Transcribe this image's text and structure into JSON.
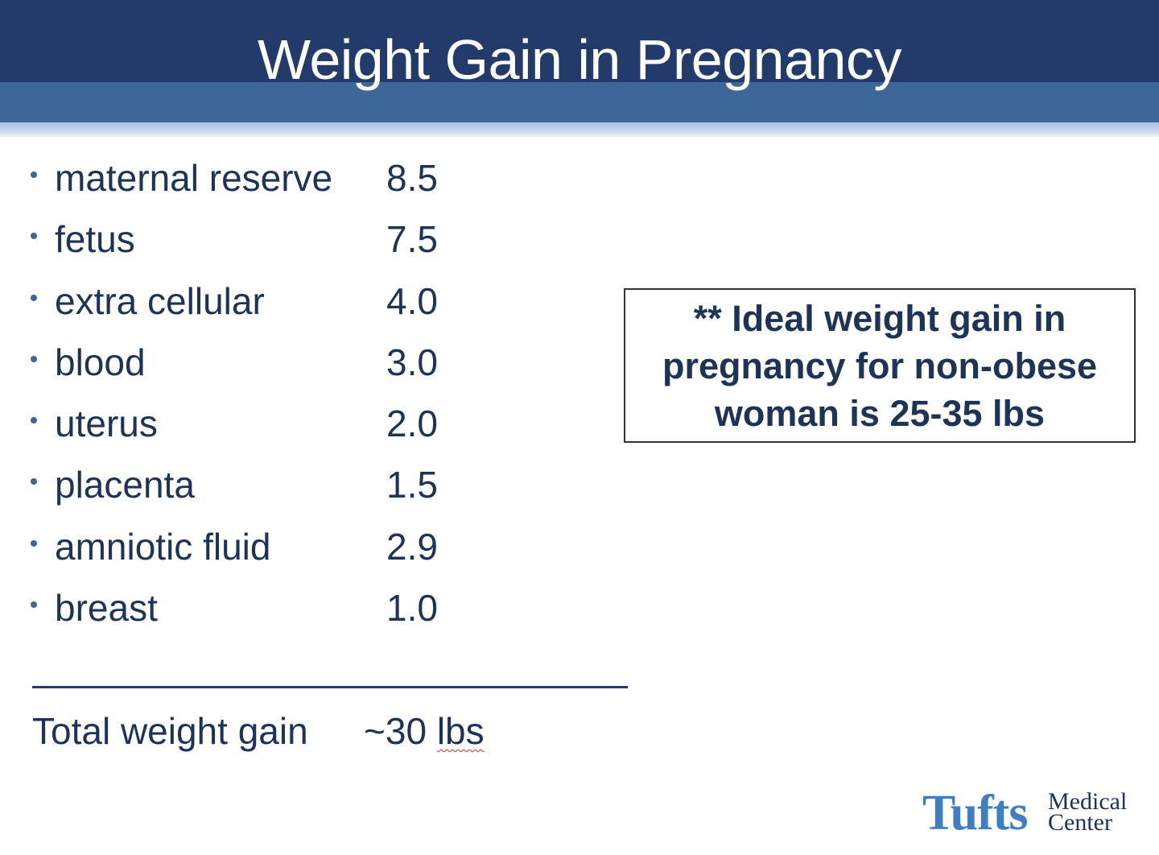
{
  "slide": {
    "title": "Weight Gain in Pregnancy"
  },
  "items": [
    {
      "label": "maternal reserve",
      "value": "8.5"
    },
    {
      "label": "fetus",
      "value": "7.5"
    },
    {
      "label": "extra cellular",
      "value": "4.0"
    },
    {
      "label": "blood",
      "value": "3.0"
    },
    {
      "label": "uterus",
      "value": "2.0"
    },
    {
      "label": "placenta",
      "value": "1.5"
    },
    {
      "label": "amniotic fluid",
      "value": "2.9"
    },
    {
      "label": "breast",
      "value": "1.0"
    }
  ],
  "total": {
    "label": "Total weight gain",
    "value_prefix": "~30 ",
    "value_unit": "lbs"
  },
  "callout": {
    "text": "** Ideal weight gain in pregnancy for non-obese woman is 25-35 lbs"
  },
  "logo": {
    "main": "Tufts",
    "sub1": "Medical",
    "sub2": "Center"
  },
  "colors": {
    "banner_dark": "#233b6a",
    "banner_mid": "#3d6699",
    "text": "#1e3358",
    "logo_blue": "#3f7fc1"
  }
}
